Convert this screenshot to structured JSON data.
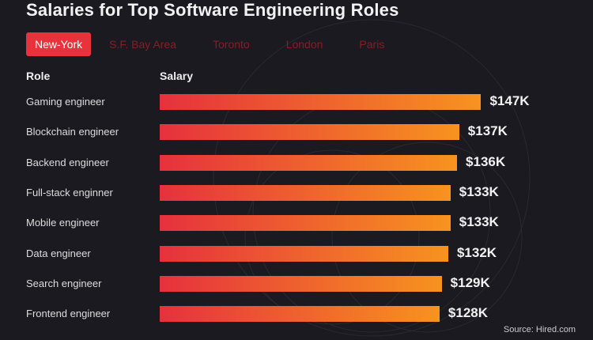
{
  "chart_data": {
    "type": "bar",
    "orientation": "horizontal",
    "title": "Salaries for Top Software Engineering Roles",
    "tabs": [
      "New-York",
      "S.F. Bay Area",
      "Toronto",
      "London",
      "Paris"
    ],
    "active_tab": "New-York",
    "column_headers": {
      "role": "Role",
      "salary": "Salary"
    },
    "categories": [
      "Gaming engineer",
      "Blockchain engineer",
      "Backend engineer",
      "Full-stack enginner",
      "Mobile engineer",
      "Data engineer",
      "Search engineer",
      "Frontend engineer"
    ],
    "values": [
      147,
      137,
      136,
      133,
      133,
      132,
      129,
      128
    ],
    "value_labels": [
      "$147K",
      "$137K",
      "$136K",
      "$133K",
      "$133K",
      "$132K",
      "$129K",
      "$128K"
    ],
    "unit": "$K",
    "source": "Source: Hired.com",
    "colors": {
      "background": "#1b1a21",
      "bar_start": "#e6313d",
      "bar_end": "#f7931f",
      "active_tab": "#e8333d",
      "inactive_tab": "#8a1c24"
    },
    "grid": false
  }
}
